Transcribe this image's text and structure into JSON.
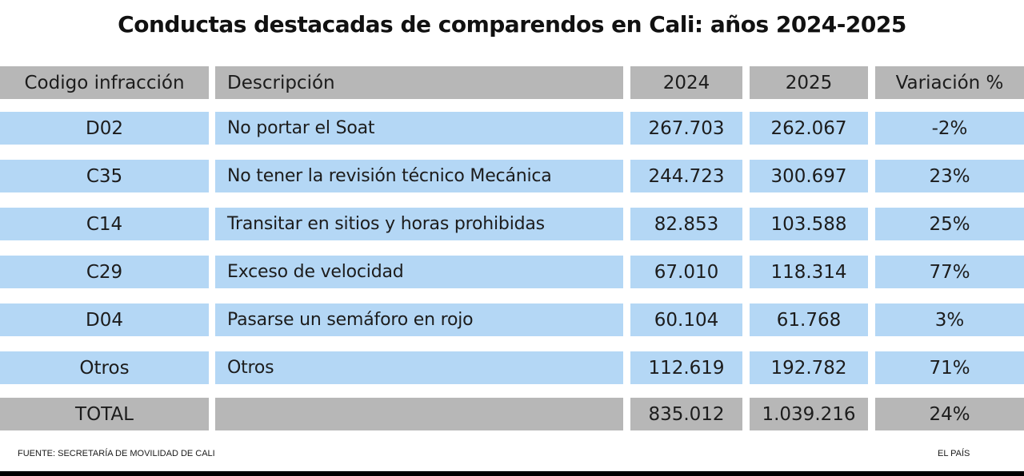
{
  "chart_data": {
    "type": "table",
    "title": "Conductas destacadas de comparendos en Cali: años 2024-2025",
    "columns": [
      "Codigo infracción",
      "Descripción",
      "2024",
      "2025",
      "Variación %"
    ],
    "rows": [
      [
        "D02",
        "No portar el Soat",
        "267.703",
        "262.067",
        "-2%"
      ],
      [
        "C35",
        "No tener la revisión técnico Mecánica",
        "244.723",
        "300.697",
        "23%"
      ],
      [
        "C14",
        "Transitar en sitios y horas prohibidas",
        "82.853",
        "103.588",
        "25%"
      ],
      [
        "C29",
        "Exceso de velocidad",
        "67.010",
        "118.314",
        "77%"
      ],
      [
        "D04",
        "Pasarse un semáforo en rojo",
        "60.104",
        "61.768",
        "3%"
      ],
      [
        "Otros",
        "Otros",
        "112.619",
        "192.782",
        "71%"
      ]
    ],
    "total": [
      "TOTAL",
      "",
      "835.012",
      "1.039.216",
      "24%"
    ]
  },
  "footer": {
    "source": "FUENTE: SECRETARÍA DE MOVILIDAD DE CALI",
    "brand": "EL PAÍS"
  },
  "colors": {
    "header_bg": "#b7b7b7",
    "row_bg": "#b4d7f5",
    "total_bg": "#b7b7b7"
  }
}
